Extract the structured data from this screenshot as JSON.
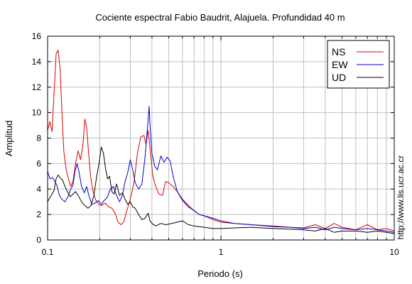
{
  "chart_data": {
    "type": "line",
    "title": "Cociente espectral Fabio Baudrit, Alajuela. Profundidad 40 m",
    "xlabel": "Periodo (s)",
    "ylabel": "Amplitud",
    "xscale": "log",
    "xlim": [
      0.1,
      10
    ],
    "ylim": [
      0,
      16
    ],
    "xticks": [
      {
        "value": 0.1,
        "label": "0.1"
      },
      {
        "value": 1,
        "label": "1"
      },
      {
        "value": 10,
        "label": "10"
      }
    ],
    "yticks": [
      0,
      2,
      4,
      6,
      8,
      10,
      12,
      14,
      16
    ],
    "grid": true,
    "legend_position": "top-right",
    "credit": "http://www.lis.ucr.ac.cr",
    "series": [
      {
        "name": "NS",
        "color": "#dd0000",
        "points": [
          [
            0.1,
            8.6
          ],
          [
            0.103,
            9.3
          ],
          [
            0.106,
            8.5
          ],
          [
            0.109,
            11.5
          ],
          [
            0.112,
            14.6
          ],
          [
            0.115,
            14.9
          ],
          [
            0.118,
            13.5
          ],
          [
            0.121,
            10
          ],
          [
            0.124,
            7
          ],
          [
            0.128,
            5.5
          ],
          [
            0.132,
            4.8
          ],
          [
            0.136,
            4.2
          ],
          [
            0.14,
            4.6
          ],
          [
            0.145,
            6
          ],
          [
            0.15,
            7
          ],
          [
            0.155,
            6.3
          ],
          [
            0.16,
            7.5
          ],
          [
            0.164,
            9.5
          ],
          [
            0.168,
            8.8
          ],
          [
            0.172,
            7
          ],
          [
            0.177,
            5
          ],
          [
            0.183,
            3.8
          ],
          [
            0.19,
            3.1
          ],
          [
            0.197,
            2.8
          ],
          [
            0.205,
            2.7
          ],
          [
            0.215,
            2.9
          ],
          [
            0.225,
            2.6
          ],
          [
            0.235,
            2.5
          ],
          [
            0.245,
            2.1
          ],
          [
            0.255,
            1.4
          ],
          [
            0.265,
            1.2
          ],
          [
            0.275,
            1.4
          ],
          [
            0.285,
            2.2
          ],
          [
            0.3,
            3.2
          ],
          [
            0.315,
            4.5
          ],
          [
            0.33,
            6.8
          ],
          [
            0.345,
            8.1
          ],
          [
            0.36,
            8.2
          ],
          [
            0.37,
            7.5
          ],
          [
            0.38,
            8.6
          ],
          [
            0.39,
            7.2
          ],
          [
            0.405,
            5
          ],
          [
            0.42,
            4.2
          ],
          [
            0.44,
            3.6
          ],
          [
            0.46,
            3.5
          ],
          [
            0.48,
            4.6
          ],
          [
            0.5,
            4.5
          ],
          [
            0.53,
            4.2
          ],
          [
            0.56,
            3.8
          ],
          [
            0.6,
            3.2
          ],
          [
            0.65,
            2.7
          ],
          [
            0.7,
            2.3
          ],
          [
            0.75,
            2
          ],
          [
            0.8,
            1.9
          ],
          [
            0.9,
            1.6
          ],
          [
            1,
            1.4
          ],
          [
            1.2,
            1.3
          ],
          [
            1.5,
            1.2
          ],
          [
            2,
            1.1
          ],
          [
            2.5,
            1
          ],
          [
            3,
            0.95
          ],
          [
            3.5,
            1.2
          ],
          [
            4,
            0.9
          ],
          [
            4.5,
            1.3
          ],
          [
            5,
            1
          ],
          [
            6,
            0.8
          ],
          [
            7,
            1.2
          ],
          [
            8,
            0.8
          ],
          [
            9,
            0.9
          ],
          [
            10,
            0.7
          ]
        ]
      },
      {
        "name": "EW",
        "color": "#0000cc",
        "points": [
          [
            0.1,
            5.4
          ],
          [
            0.103,
            4.8
          ],
          [
            0.107,
            4.9
          ],
          [
            0.11,
            4.6
          ],
          [
            0.113,
            4.3
          ],
          [
            0.117,
            3.5
          ],
          [
            0.121,
            3.2
          ],
          [
            0.126,
            3
          ],
          [
            0.131,
            3.4
          ],
          [
            0.136,
            4
          ],
          [
            0.14,
            4.3
          ],
          [
            0.144,
            5.4
          ],
          [
            0.148,
            6
          ],
          [
            0.152,
            5.3
          ],
          [
            0.157,
            4.2
          ],
          [
            0.163,
            3.7
          ],
          [
            0.168,
            4.2
          ],
          [
            0.173,
            3.5
          ],
          [
            0.18,
            2.8
          ],
          [
            0.188,
            2.9
          ],
          [
            0.196,
            3.1
          ],
          [
            0.204,
            2.8
          ],
          [
            0.212,
            3.1
          ],
          [
            0.22,
            3.3
          ],
          [
            0.23,
            4
          ],
          [
            0.24,
            4.2
          ],
          [
            0.25,
            3.5
          ],
          [
            0.26,
            3
          ],
          [
            0.27,
            3.5
          ],
          [
            0.28,
            4.6
          ],
          [
            0.29,
            5.3
          ],
          [
            0.3,
            6.3
          ],
          [
            0.31,
            5.5
          ],
          [
            0.32,
            4.5
          ],
          [
            0.335,
            4
          ],
          [
            0.35,
            4.4
          ],
          [
            0.365,
            6.5
          ],
          [
            0.38,
            9.4
          ],
          [
            0.385,
            10.5
          ],
          [
            0.39,
            9
          ],
          [
            0.4,
            6.8
          ],
          [
            0.415,
            5.8
          ],
          [
            0.43,
            5.5
          ],
          [
            0.45,
            6.6
          ],
          [
            0.47,
            6.1
          ],
          [
            0.49,
            6.5
          ],
          [
            0.51,
            6.2
          ],
          [
            0.53,
            5
          ],
          [
            0.56,
            3.8
          ],
          [
            0.6,
            3.1
          ],
          [
            0.65,
            2.6
          ],
          [
            0.7,
            2.3
          ],
          [
            0.75,
            2
          ],
          [
            0.8,
            1.9
          ],
          [
            0.9,
            1.7
          ],
          [
            1,
            1.5
          ],
          [
            1.2,
            1.3
          ],
          [
            1.5,
            1.2
          ],
          [
            2,
            1.05
          ],
          [
            2.5,
            1
          ],
          [
            3,
            0.9
          ],
          [
            3.5,
            1
          ],
          [
            4,
            0.8
          ],
          [
            4.5,
            1
          ],
          [
            5,
            0.9
          ],
          [
            6,
            0.8
          ],
          [
            7,
            0.9
          ],
          [
            8,
            0.8
          ],
          [
            9,
            0.7
          ],
          [
            10,
            0.6
          ]
        ]
      },
      {
        "name": "UD",
        "color": "#000000",
        "points": [
          [
            0.1,
            3
          ],
          [
            0.103,
            3.3
          ],
          [
            0.106,
            3.6
          ],
          [
            0.109,
            3.9
          ],
          [
            0.112,
            4.8
          ],
          [
            0.115,
            5.1
          ],
          [
            0.118,
            4.9
          ],
          [
            0.122,
            4.7
          ],
          [
            0.126,
            4.2
          ],
          [
            0.13,
            3.8
          ],
          [
            0.135,
            3.4
          ],
          [
            0.14,
            3.6
          ],
          [
            0.145,
            3.8
          ],
          [
            0.15,
            3.5
          ],
          [
            0.157,
            3
          ],
          [
            0.164,
            2.7
          ],
          [
            0.171,
            2.5
          ],
          [
            0.178,
            2.7
          ],
          [
            0.185,
            3.5
          ],
          [
            0.192,
            5
          ],
          [
            0.198,
            6
          ],
          [
            0.204,
            7.3
          ],
          [
            0.21,
            6.8
          ],
          [
            0.216,
            5.6
          ],
          [
            0.222,
            4.8
          ],
          [
            0.228,
            5
          ],
          [
            0.235,
            3.8
          ],
          [
            0.242,
            3.6
          ],
          [
            0.25,
            4.4
          ],
          [
            0.26,
            3.5
          ],
          [
            0.27,
            3.7
          ],
          [
            0.28,
            3.2
          ],
          [
            0.29,
            2.8
          ],
          [
            0.3,
            3
          ],
          [
            0.31,
            2.6
          ],
          [
            0.32,
            2.5
          ],
          [
            0.335,
            2
          ],
          [
            0.35,
            1.6
          ],
          [
            0.365,
            1.7
          ],
          [
            0.38,
            2.1
          ],
          [
            0.39,
            1.5
          ],
          [
            0.4,
            1.3
          ],
          [
            0.42,
            1.1
          ],
          [
            0.45,
            1.3
          ],
          [
            0.48,
            1.2
          ],
          [
            0.52,
            1.3
          ],
          [
            0.56,
            1.4
          ],
          [
            0.6,
            1.5
          ],
          [
            0.65,
            1.2
          ],
          [
            0.7,
            1.1
          ],
          [
            0.8,
            1
          ],
          [
            0.9,
            0.9
          ],
          [
            1,
            0.9
          ],
          [
            1.2,
            0.95
          ],
          [
            1.5,
            1
          ],
          [
            2,
            0.9
          ],
          [
            2.5,
            0.85
          ],
          [
            3,
            0.8
          ],
          [
            3.5,
            0.7
          ],
          [
            4,
            0.9
          ],
          [
            4.5,
            0.6
          ],
          [
            5,
            0.7
          ],
          [
            6,
            0.7
          ],
          [
            7,
            0.6
          ],
          [
            8,
            0.7
          ],
          [
            9,
            0.6
          ],
          [
            10,
            0.5
          ]
        ]
      }
    ]
  }
}
